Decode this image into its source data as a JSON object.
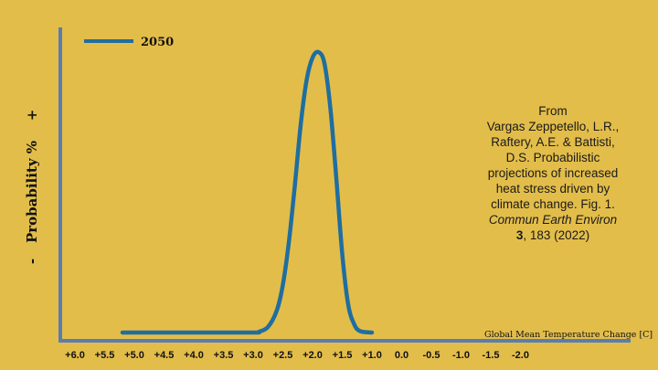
{
  "chart_data": {
    "type": "line",
    "series": [
      {
        "name": "2050",
        "color": "#1f6ea0",
        "points": [
          [
            5.2,
            0.0
          ],
          [
            4.0,
            0.0
          ],
          [
            3.0,
            0.0
          ],
          [
            2.9,
            0.003
          ],
          [
            2.75,
            0.02
          ],
          [
            2.6,
            0.08
          ],
          [
            2.5,
            0.17
          ],
          [
            2.4,
            0.32
          ],
          [
            2.3,
            0.52
          ],
          [
            2.2,
            0.74
          ],
          [
            2.1,
            0.9
          ],
          [
            2.0,
            0.98
          ],
          [
            1.9,
            1.0
          ],
          [
            1.8,
            0.96
          ],
          [
            1.7,
            0.8
          ],
          [
            1.6,
            0.55
          ],
          [
            1.5,
            0.28
          ],
          [
            1.4,
            0.1
          ],
          [
            1.3,
            0.03
          ],
          [
            1.2,
            0.005
          ],
          [
            1.0,
            0.0
          ]
        ]
      }
    ],
    "xlabel": "Global Mean Temperature Change [C]",
    "ylabel": "Probability %",
    "ylabel_minus": "-",
    "ylabel_plus": "+",
    "x_ticks": [
      "+6.0",
      "+5.5",
      "+5.0",
      "+4.5",
      "+4.0",
      "+3.5",
      "+3.0",
      "+2.5",
      "+2.0",
      "+1.5",
      "+1.0",
      "0.0",
      "-0.5",
      "-1.0",
      "-1.5",
      "-2.0"
    ],
    "legend": {
      "position": "top-left"
    },
    "grid": false
  },
  "citation": {
    "from": "From",
    "text_plain": "Vargas Zeppetello, L.R., Raftery, A.E. & Battisti, D.S. Probabilistic projections of increased heat stress driven by climate change. Fig. 1.",
    "journal": "Commun Earth Environ",
    "volume": "3",
    "pages_year": ", 183 (2022)"
  },
  "colors": {
    "background": "#e3bd4a",
    "axis": "#5a7db0",
    "series": "#1f6ea0"
  }
}
